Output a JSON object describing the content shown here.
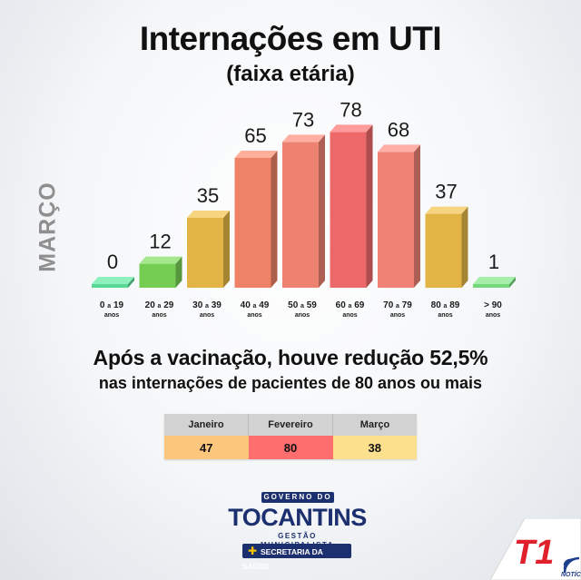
{
  "title": "Internações em UTI",
  "subtitle": "(faixa etária)",
  "side_label": "MARÇO",
  "headline": "Após a vacinação, houve redução 52,5%",
  "subline": "nas internações de pacientes de 80 anos ou mais",
  "chart_data": {
    "type": "bar",
    "title": "Internações em UTI",
    "subtitle": "(faixa etária)",
    "categories": [
      {
        "a": "0",
        "b": "19",
        "unit": "anos"
      },
      {
        "a": "20",
        "b": "29",
        "unit": "anos"
      },
      {
        "a": "30",
        "b": "39",
        "unit": "anos"
      },
      {
        "a": "40",
        "b": "49",
        "unit": "anos"
      },
      {
        "a": "50",
        "b": "59",
        "unit": "anos"
      },
      {
        "a": "60",
        "b": "69",
        "unit": "anos"
      },
      {
        "a": "70",
        "b": "79",
        "unit": "anos"
      },
      {
        "a": "80",
        "b": "89",
        "unit": "anos"
      },
      {
        "a": "> 90",
        "b": "",
        "unit": "anos"
      }
    ],
    "connector": "a",
    "values": [
      0,
      12,
      35,
      65,
      73,
      78,
      68,
      37,
      1
    ],
    "colors": [
      "#5fe8a0",
      "#7fdc5a",
      "#f2c24a",
      "#ff8c6e",
      "#ff8c7a",
      "#ff7070",
      "#ff8c7e",
      "#f2c24a",
      "#7fe886"
    ],
    "grid": false,
    "legend": "none"
  },
  "table": {
    "headers": [
      "Janeiro",
      "Fevereiro",
      "Março"
    ],
    "values": [
      "47",
      "80",
      "38"
    ],
    "colors": [
      "#fcc67c",
      "#ff6e6e",
      "#fde08e"
    ]
  },
  "logo": {
    "line1": "GOVERNO DO",
    "line2": "TOCANTINS",
    "line3": "GESTÃO MUNICIPALISTA",
    "line4": "SECRETARIA DA SAÚDE"
  },
  "badge": {
    "text": "T1",
    "sub": "NOTÍCIAS",
    "color": "#e0202a"
  }
}
